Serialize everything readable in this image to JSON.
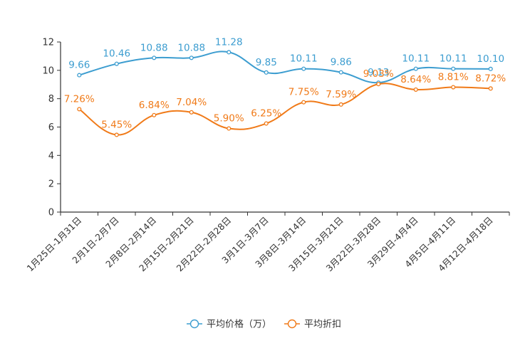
{
  "chart_data": {
    "type": "line",
    "categories": [
      "1月25日-1月31日",
      "2月1日-2月7日",
      "2月8日-2月14日",
      "2月15日-2月21日",
      "2月22日-2月28日",
      "3月1日-3月7日",
      "3月8日-3月14日",
      "3月15日-3月21日",
      "3月22日-3月28日",
      "3月29日-4月4日",
      "4月5日-4月11日",
      "4月12日-4月18日"
    ],
    "ylim": [
      0,
      12
    ],
    "yticks": [
      0,
      2,
      4,
      6,
      8,
      10,
      12
    ],
    "series": [
      {
        "name": "平均价格（万）",
        "color": "#3c9dd0",
        "values": [
          9.66,
          10.46,
          10.88,
          10.88,
          11.28,
          9.85,
          10.11,
          9.86,
          9.13,
          10.11,
          10.11,
          10.1
        ],
        "labels": [
          "9.66",
          "10.46",
          "10.88",
          "10.88",
          "11.28",
          "9.85",
          "10.11",
          "9.86",
          "9.13",
          "10.11",
          "10.11",
          "10.10"
        ]
      },
      {
        "name": "平均折扣",
        "color": "#f07a18",
        "values": [
          7.26,
          5.45,
          6.84,
          7.04,
          5.9,
          6.25,
          7.75,
          7.59,
          9.03,
          8.64,
          8.81,
          8.72
        ],
        "labels": [
          "7.26%",
          "5.45%",
          "6.84%",
          "7.04%",
          "5.90%",
          "6.25%",
          "7.75%",
          "7.59%",
          "9.03%",
          "8.64%",
          "8.81%",
          "8.72%"
        ]
      }
    ],
    "legend": "bottom-center"
  }
}
